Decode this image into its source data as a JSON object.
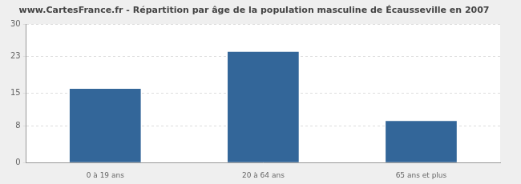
{
  "chart_data": {
    "type": "bar",
    "title": "www.CartesFrance.fr - Répartition par âge de la population masculine de Écausseville en 2007",
    "categories": [
      "0 à 19 ans",
      "20 à 64 ans",
      "65 ans et plus"
    ],
    "values": [
      16,
      24,
      9
    ],
    "color": "#336699",
    "ylim": [
      0,
      30
    ],
    "yticks": [
      0,
      8,
      15,
      23,
      30
    ],
    "grid": true
  }
}
